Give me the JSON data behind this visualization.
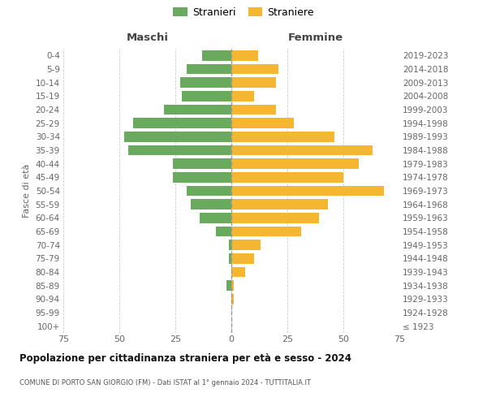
{
  "age_groups": [
    "100+",
    "95-99",
    "90-94",
    "85-89",
    "80-84",
    "75-79",
    "70-74",
    "65-69",
    "60-64",
    "55-59",
    "50-54",
    "45-49",
    "40-44",
    "35-39",
    "30-34",
    "25-29",
    "20-24",
    "15-19",
    "10-14",
    "5-9",
    "0-4"
  ],
  "birth_years": [
    "≤ 1923",
    "1924-1928",
    "1929-1933",
    "1934-1938",
    "1939-1943",
    "1944-1948",
    "1949-1953",
    "1954-1958",
    "1959-1963",
    "1964-1968",
    "1969-1973",
    "1974-1978",
    "1979-1983",
    "1984-1988",
    "1989-1993",
    "1994-1998",
    "1999-2003",
    "2004-2008",
    "2009-2013",
    "2014-2018",
    "2019-2023"
  ],
  "maschi": [
    0,
    0,
    0,
    2,
    0,
    1,
    1,
    7,
    14,
    18,
    20,
    26,
    26,
    46,
    48,
    44,
    30,
    22,
    23,
    20,
    13
  ],
  "femmine": [
    0,
    0,
    1,
    1,
    6,
    10,
    13,
    31,
    39,
    43,
    68,
    50,
    57,
    63,
    46,
    28,
    20,
    10,
    20,
    21,
    12
  ],
  "male_color": "#6aaa5e",
  "female_color": "#f5b731",
  "title": "Popolazione per cittadinanza straniera per età e sesso - 2024",
  "subtitle": "COMUNE DI PORTO SAN GIORGIO (FM) - Dati ISTAT al 1° gennaio 2024 - TUTTITALIA.IT",
  "legend_male": "Stranieri",
  "legend_female": "Straniere",
  "xlabel_left": "Maschi",
  "xlabel_right": "Femmine",
  "ylabel_left": "Fasce di età",
  "xlim": 75,
  "background_color": "#ffffff",
  "grid_color": "#cccccc"
}
